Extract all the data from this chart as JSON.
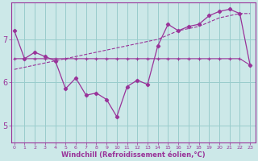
{
  "xlabel": "Windchill (Refroidissement éolien,°C)",
  "background_color": "#cce8e8",
  "line_color": "#993399",
  "grid_color": "#99cccc",
  "x_ticks": [
    0,
    1,
    2,
    3,
    4,
    5,
    6,
    7,
    8,
    9,
    10,
    11,
    12,
    13,
    14,
    15,
    16,
    17,
    18,
    19,
    20,
    21,
    22,
    23
  ],
  "y_ticks": [
    5,
    6,
    7
  ],
  "ylim": [
    4.6,
    7.85
  ],
  "xlim": [
    -0.3,
    23.5
  ],
  "wc_y": [
    7.2,
    6.55,
    6.7,
    6.6,
    6.5,
    5.85,
    6.1,
    5.7,
    5.75,
    5.6,
    5.2,
    5.9,
    6.05,
    5.95,
    6.85,
    7.35,
    7.2,
    7.3,
    7.35,
    7.55,
    7.65,
    7.7,
    7.6,
    6.4
  ],
  "flat_y": [
    6.55,
    6.55,
    6.55,
    6.55,
    6.55,
    6.55,
    6.55,
    6.55,
    6.55,
    6.55,
    6.55,
    6.55,
    6.55,
    6.55,
    6.55,
    6.55,
    6.55,
    6.55,
    6.55,
    6.55,
    6.55,
    6.55,
    6.55,
    6.4
  ],
  "trend_y": [
    6.3,
    6.35,
    6.4,
    6.45,
    6.5,
    6.55,
    6.6,
    6.65,
    6.7,
    6.75,
    6.8,
    6.85,
    6.9,
    6.95,
    7.0,
    7.1,
    7.2,
    7.25,
    7.3,
    7.4,
    7.5,
    7.55,
    7.6,
    7.6
  ]
}
